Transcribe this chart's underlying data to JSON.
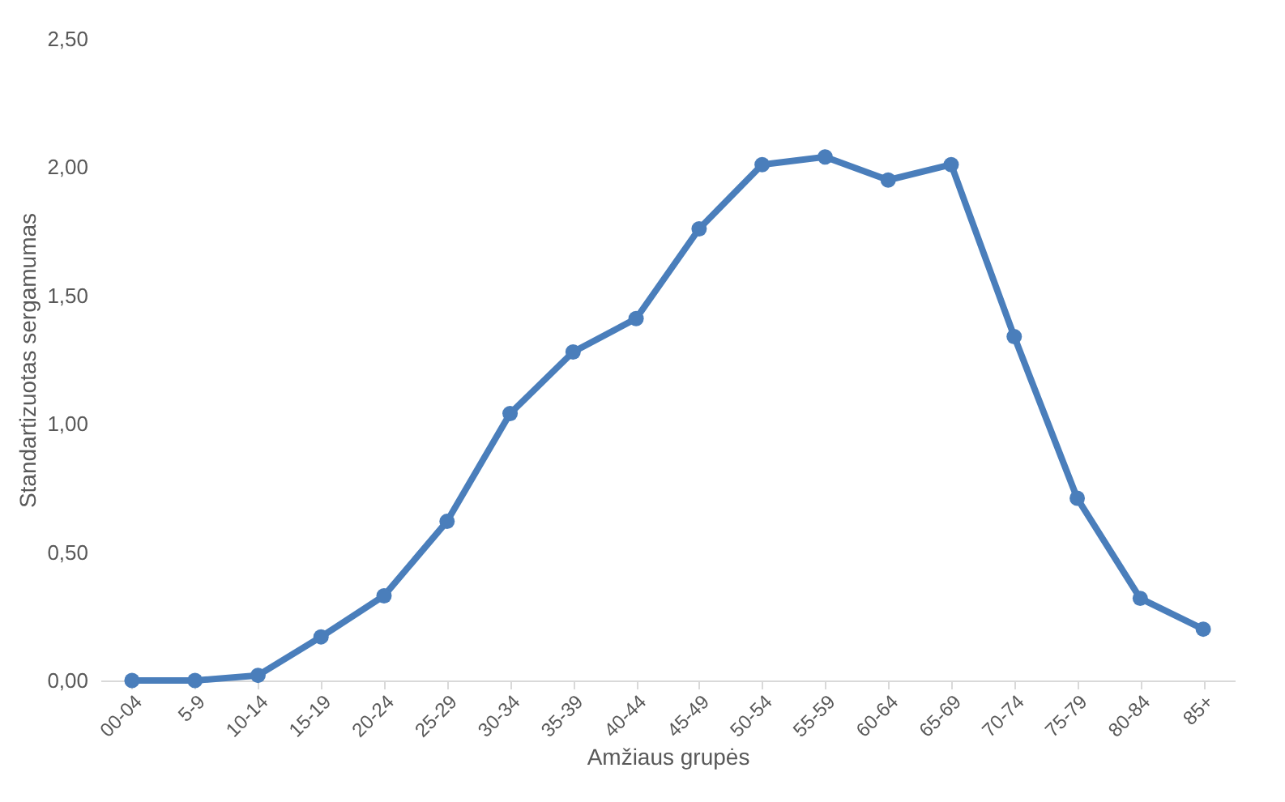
{
  "chart_data": {
    "type": "line",
    "xlabel": "Amžiaus grupės",
    "ylabel": "Standartizuotas sergamumas",
    "categories": [
      "00-04",
      "5-9",
      "10-14",
      "15-19",
      "20-24",
      "25-29",
      "30-34",
      "35-39",
      "40-44",
      "45-49",
      "50-54",
      "55-59",
      "60-64",
      "65-69",
      "70-74",
      "75-79",
      "80-84",
      "85+"
    ],
    "series": [
      {
        "color": "#4a7ebb",
        "values": [
          0.0,
          0.0,
          0.02,
          0.17,
          0.33,
          0.62,
          1.04,
          1.28,
          1.41,
          1.76,
          2.01,
          2.04,
          1.95,
          2.01,
          1.34,
          0.71,
          0.32,
          0.2
        ]
      }
    ],
    "ylim": [
      0,
      2.5
    ],
    "yticks": [
      {
        "value": 0,
        "label": "0,00"
      },
      {
        "value": 0.5,
        "label": "0,50"
      },
      {
        "value": 1,
        "label": "1,00"
      },
      {
        "value": 1.5,
        "label": "1,50"
      },
      {
        "value": 2,
        "label": "2,00"
      },
      {
        "value": 2.5,
        "label": "2,50"
      }
    ],
    "grid": false,
    "marker": "circle",
    "line_style": "solid"
  }
}
